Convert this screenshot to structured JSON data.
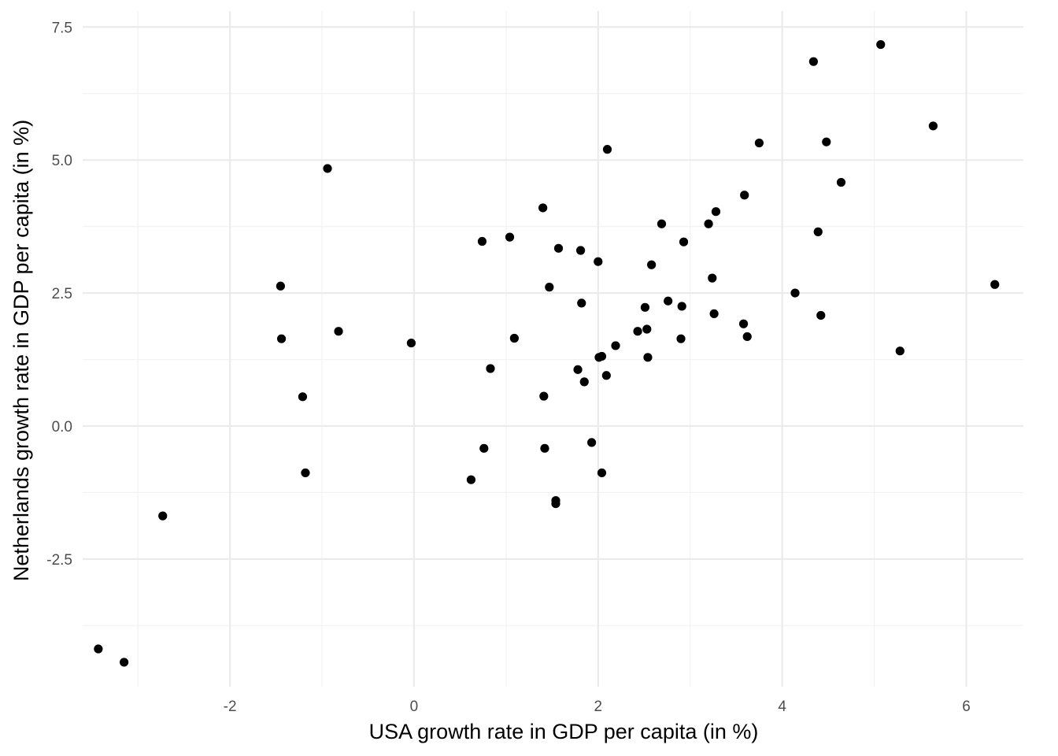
{
  "chart_data": {
    "type": "scatter",
    "title": "",
    "xlabel": "USA growth rate in GDP per capita (in %)",
    "ylabel": "Netherlands growth rate in GDP per capita (in %)",
    "xlim": [
      -3.6,
      6.62
    ],
    "ylim": [
      -4.9,
      7.8
    ],
    "x_ticks": [
      -2,
      0,
      2,
      4,
      6
    ],
    "x_tick_labels": [
      "-2",
      "0",
      "2",
      "4",
      "6"
    ],
    "y_ticks": [
      -2.5,
      0.0,
      2.5,
      5.0,
      7.5
    ],
    "y_tick_labels": [
      "-2.5",
      "0.0",
      "2.5",
      "5.0",
      "7.5"
    ],
    "x_minor_ticks": [
      -3,
      -1,
      1,
      3,
      5
    ],
    "y_minor_ticks": [
      -3.75,
      -1.25,
      1.25,
      3.75,
      6.25
    ],
    "grid": true,
    "legend": "none",
    "point_color": "#000000",
    "series": [
      {
        "points": [
          [
            -3.43,
            -4.19
          ],
          [
            -3.15,
            -4.44
          ],
          [
            -2.73,
            -1.69
          ],
          [
            -1.45,
            2.63
          ],
          [
            -1.44,
            1.64
          ],
          [
            -1.21,
            0.55
          ],
          [
            -1.18,
            -0.88
          ],
          [
            -0.94,
            4.84
          ],
          [
            -0.82,
            1.78
          ],
          [
            -0.03,
            1.56
          ],
          [
            0.62,
            -1.01
          ],
          [
            0.74,
            3.47
          ],
          [
            0.76,
            -0.42
          ],
          [
            0.83,
            1.08
          ],
          [
            1.04,
            3.55
          ],
          [
            1.09,
            1.65
          ],
          [
            1.4,
            4.1
          ],
          [
            1.41,
            0.56
          ],
          [
            1.42,
            -0.42
          ],
          [
            1.47,
            2.61
          ],
          [
            1.54,
            -1.4
          ],
          [
            1.54,
            -1.46
          ],
          [
            1.57,
            3.34
          ],
          [
            1.78,
            1.06
          ],
          [
            1.81,
            3.3
          ],
          [
            1.82,
            2.31
          ],
          [
            1.85,
            0.83
          ],
          [
            1.93,
            -0.31
          ],
          [
            2.0,
            3.09
          ],
          [
            2.01,
            1.29
          ],
          [
            2.04,
            1.31
          ],
          [
            2.04,
            -0.88
          ],
          [
            2.09,
            0.95
          ],
          [
            2.1,
            5.2
          ],
          [
            2.19,
            1.51
          ],
          [
            2.43,
            1.78
          ],
          [
            2.51,
            2.23
          ],
          [
            2.53,
            1.82
          ],
          [
            2.54,
            1.29
          ],
          [
            2.58,
            3.03
          ],
          [
            2.69,
            3.8
          ],
          [
            2.76,
            2.35
          ],
          [
            2.9,
            1.64
          ],
          [
            2.91,
            2.25
          ],
          [
            2.93,
            3.46
          ],
          [
            3.2,
            3.8
          ],
          [
            3.24,
            2.78
          ],
          [
            3.26,
            2.11
          ],
          [
            3.28,
            4.03
          ],
          [
            3.58,
            1.92
          ],
          [
            3.59,
            4.34
          ],
          [
            3.62,
            1.68
          ],
          [
            3.75,
            5.32
          ],
          [
            4.14,
            2.5
          ],
          [
            4.34,
            6.85
          ],
          [
            4.39,
            3.65
          ],
          [
            4.42,
            2.08
          ],
          [
            4.48,
            5.34
          ],
          [
            4.64,
            4.58
          ],
          [
            5.07,
            7.17
          ],
          [
            5.28,
            1.41
          ],
          [
            5.64,
            5.64
          ],
          [
            6.31,
            2.66
          ]
        ]
      }
    ]
  }
}
